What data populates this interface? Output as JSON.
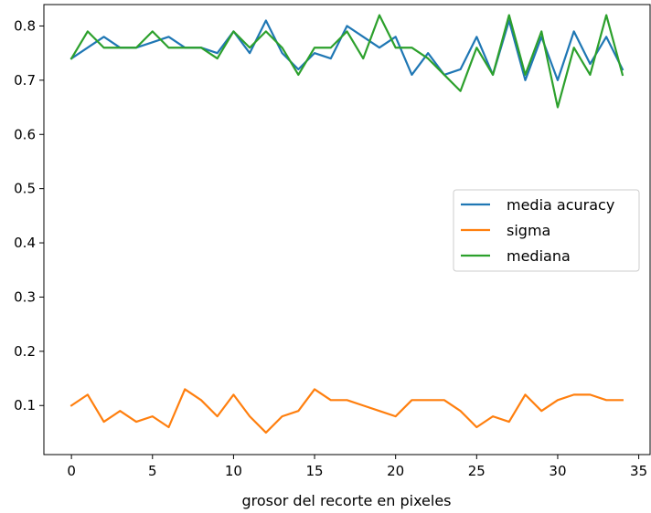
{
  "chart_data": {
    "type": "line",
    "title": "",
    "xlabel": "grosor del recorte en pixeles",
    "ylabel": "",
    "xlim": [
      -1.7,
      35.7
    ],
    "ylim": [
      0.0095,
      0.8395
    ],
    "x_ticks": [
      0,
      5,
      10,
      15,
      20,
      25,
      30,
      35
    ],
    "y_ticks": [
      0.1,
      0.2,
      0.3,
      0.4,
      0.5,
      0.6,
      0.7,
      0.8
    ],
    "x_tick_labels": [
      "0",
      "5",
      "10",
      "15",
      "20",
      "25",
      "30",
      "35"
    ],
    "y_tick_labels": [
      "0.1",
      "0.2",
      "0.3",
      "0.4",
      "0.5",
      "0.6",
      "0.7",
      "0.8"
    ],
    "grid": false,
    "legend_position": "center-right",
    "x": [
      0,
      1,
      2,
      3,
      4,
      5,
      6,
      7,
      8,
      9,
      10,
      11,
      12,
      13,
      14,
      15,
      16,
      17,
      18,
      19,
      20,
      21,
      22,
      23,
      24,
      25,
      26,
      27,
      28,
      29,
      30,
      31,
      32,
      33,
      34
    ],
    "series": [
      {
        "name": "media acuracy",
        "color": "#1f77b4",
        "values": [
          0.74,
          0.76,
          0.78,
          0.76,
          0.76,
          0.77,
          0.78,
          0.76,
          0.76,
          0.75,
          0.79,
          0.75,
          0.81,
          0.75,
          0.72,
          0.75,
          0.74,
          0.8,
          0.78,
          0.76,
          0.78,
          0.71,
          0.75,
          0.71,
          0.72,
          0.78,
          0.71,
          0.81,
          0.7,
          0.78,
          0.7,
          0.79,
          0.73,
          0.78,
          0.72
        ]
      },
      {
        "name": "sigma",
        "color": "#ff7f0e",
        "values": [
          0.1,
          0.12,
          0.07,
          0.09,
          0.07,
          0.08,
          0.06,
          0.13,
          0.11,
          0.08,
          0.12,
          0.08,
          0.05,
          0.08,
          0.09,
          0.13,
          0.11,
          0.11,
          0.1,
          0.09,
          0.08,
          0.11,
          0.11,
          0.11,
          0.09,
          0.06,
          0.08,
          0.07,
          0.12,
          0.09,
          0.11,
          0.12,
          0.12,
          0.11,
          0.11
        ]
      },
      {
        "name": "mediana",
        "color": "#2ca02c",
        "values": [
          0.74,
          0.79,
          0.76,
          0.76,
          0.76,
          0.79,
          0.76,
          0.76,
          0.76,
          0.74,
          0.79,
          0.76,
          0.79,
          0.76,
          0.71,
          0.76,
          0.76,
          0.79,
          0.74,
          0.82,
          0.76,
          0.76,
          0.74,
          0.71,
          0.68,
          0.76,
          0.71,
          0.82,
          0.71,
          0.79,
          0.65,
          0.76,
          0.71,
          0.82,
          0.71
        ]
      }
    ]
  }
}
